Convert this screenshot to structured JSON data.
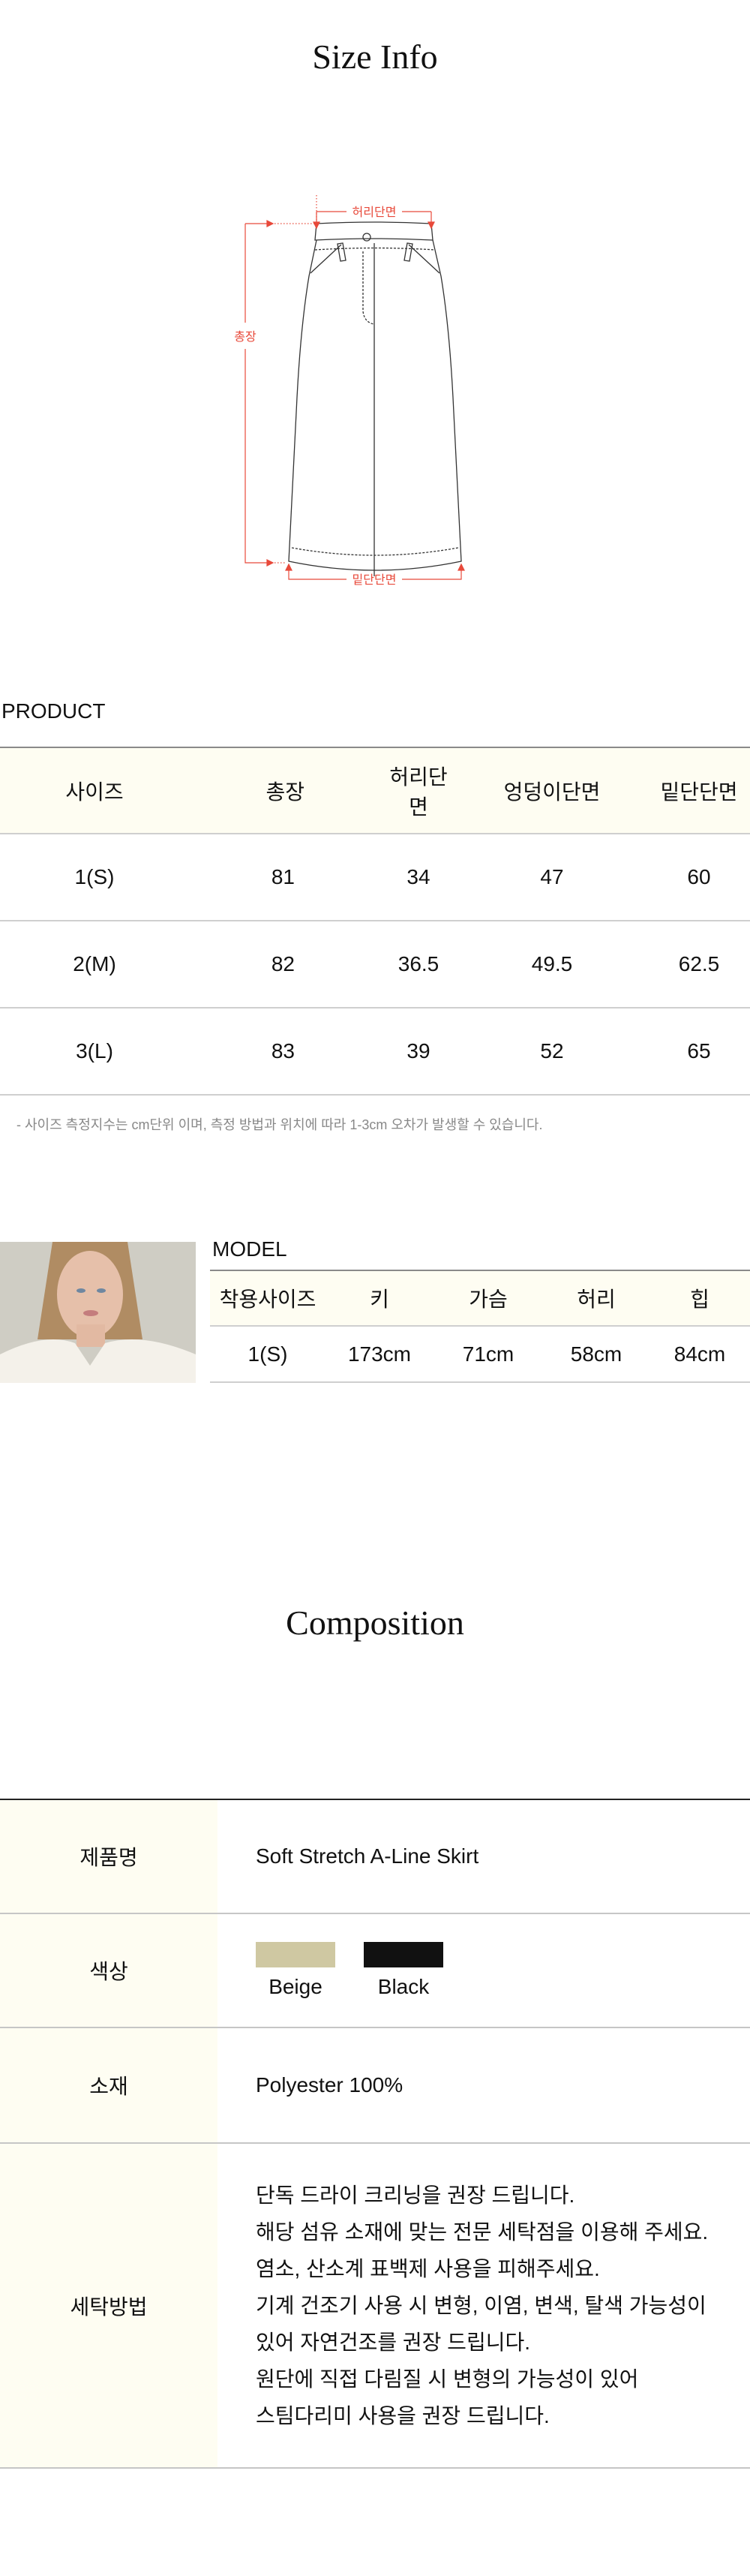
{
  "size_info": {
    "title": "Size Info",
    "diagram_labels": {
      "waist": "허리단면",
      "length": "총장",
      "hem": "밑단단면"
    },
    "accent_color": "#e8493a"
  },
  "product": {
    "label": "PRODUCT",
    "headers": [
      "사이즈",
      "총장",
      "허리단면",
      "엉덩이단면",
      "밑단단면"
    ],
    "rows": [
      [
        "1(S)",
        "81",
        "34",
        "47",
        "60"
      ],
      [
        "2(M)",
        "82",
        "36.5",
        "49.5",
        "62.5"
      ],
      [
        "3(L)",
        "83",
        "39",
        "52",
        "65"
      ]
    ],
    "note": "-  사이즈 측정지수는 cm단위 이며, 측정 방법과 위치에 따라 1-3cm 오차가 발생할 수 있습니다."
  },
  "model": {
    "label": "MODEL",
    "headers": [
      "착용사이즈",
      "키",
      "가슴",
      "허리",
      "힙"
    ],
    "row": [
      "1(S)",
      "173cm",
      "71cm",
      "58cm",
      "84cm"
    ]
  },
  "composition": {
    "title": "Composition",
    "product_name_label": "제품명",
    "product_name": "Soft Stretch A-Line Skirt",
    "color_label": "색상",
    "colors": [
      {
        "name": "Beige",
        "hex": "#cfc8a2"
      },
      {
        "name": "Black",
        "hex": "#111111"
      }
    ],
    "material_label": "소재",
    "material": "Polyester 100%",
    "care_label": "세탁방법",
    "care_lines": [
      "단독 드라이 크리닝을 권장 드립니다.",
      "해당 섬유 소재에 맞는 전문 세탁점을 이용해 주세요.",
      "염소, 산소계 표백제 사용을 피해주세요.",
      "기계 건조기 사용 시 변형, 이염, 변색, 탈색 가능성이",
      "있어 자연건조를 권장 드립니다.",
      "원단에 직접 다림질 시 변형의 가능성이 있어",
      "스팀다리미 사용을 권장 드립니다."
    ]
  }
}
